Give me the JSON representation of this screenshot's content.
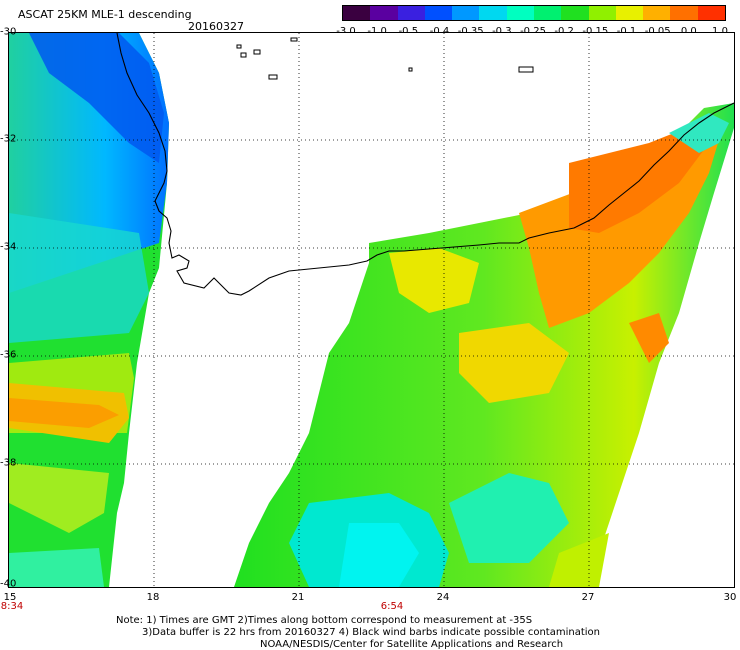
{
  "header": {
    "title": "ASCAT 25KM MLE-1 descending",
    "date": "20160327"
  },
  "colorbar": {
    "colors": [
      "#3a0040",
      "#5a00a0",
      "#3a20e0",
      "#0050ff",
      "#0098ff",
      "#00d8f0",
      "#00ffc0",
      "#00f070",
      "#20e020",
      "#90f000",
      "#e8f000",
      "#ffb000",
      "#ff7000",
      "#ff3000"
    ],
    "tick_labels": [
      "-3.0",
      "-1.0",
      "-0.5",
      "-0.4",
      "-0.35",
      "-0.3",
      "-0.25",
      "-0.2",
      "-0.15",
      "-0.1",
      "-0.05",
      "0.0",
      "1.0"
    ]
  },
  "axes": {
    "lon_labels": [
      "15",
      "18",
      "21",
      "24",
      "27",
      "30"
    ],
    "lat_labels": [
      "-30",
      "-32",
      "-34",
      "-36",
      "-38",
      "-40"
    ]
  },
  "times": [
    "8:34",
    "6:54"
  ],
  "notes": [
    "Note: 1) Times are GMT 2)Times along bottom correspond to measurement at -35S",
    "3)Data buffer is 22 hrs from 20160327 4) Black wind barbs indicate possible contamination",
    "NOAA/NESDIS/Center for Satellite Applications and Research"
  ]
}
